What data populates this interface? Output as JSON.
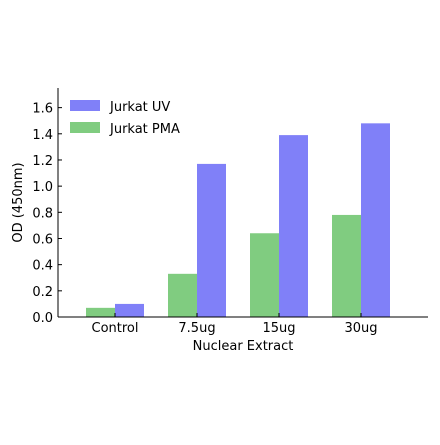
{
  "chart_data": {
    "type": "bar",
    "title": "",
    "xlabel": "Nuclear Extract",
    "ylabel": "OD (450nm)",
    "categories": [
      "Control",
      "7.5ug",
      "15ug",
      "30ug"
    ],
    "series": [
      {
        "name": "Jurkat PMA",
        "color": "#80cc80",
        "values": [
          0.07,
          0.33,
          0.64,
          0.78
        ]
      },
      {
        "name": "Jurkat UV",
        "color": "#8080f8",
        "values": [
          0.1,
          1.17,
          1.39,
          1.48
        ]
      }
    ],
    "legend_order": [
      1,
      0
    ],
    "legend_position": "top-left",
    "ylim": [
      0.0,
      1.75
    ],
    "yticks": [
      "0.0",
      "0.2",
      "0.4",
      "0.6",
      "0.8",
      "1.0",
      "1.2",
      "1.4",
      "1.6"
    ],
    "grid": false
  }
}
